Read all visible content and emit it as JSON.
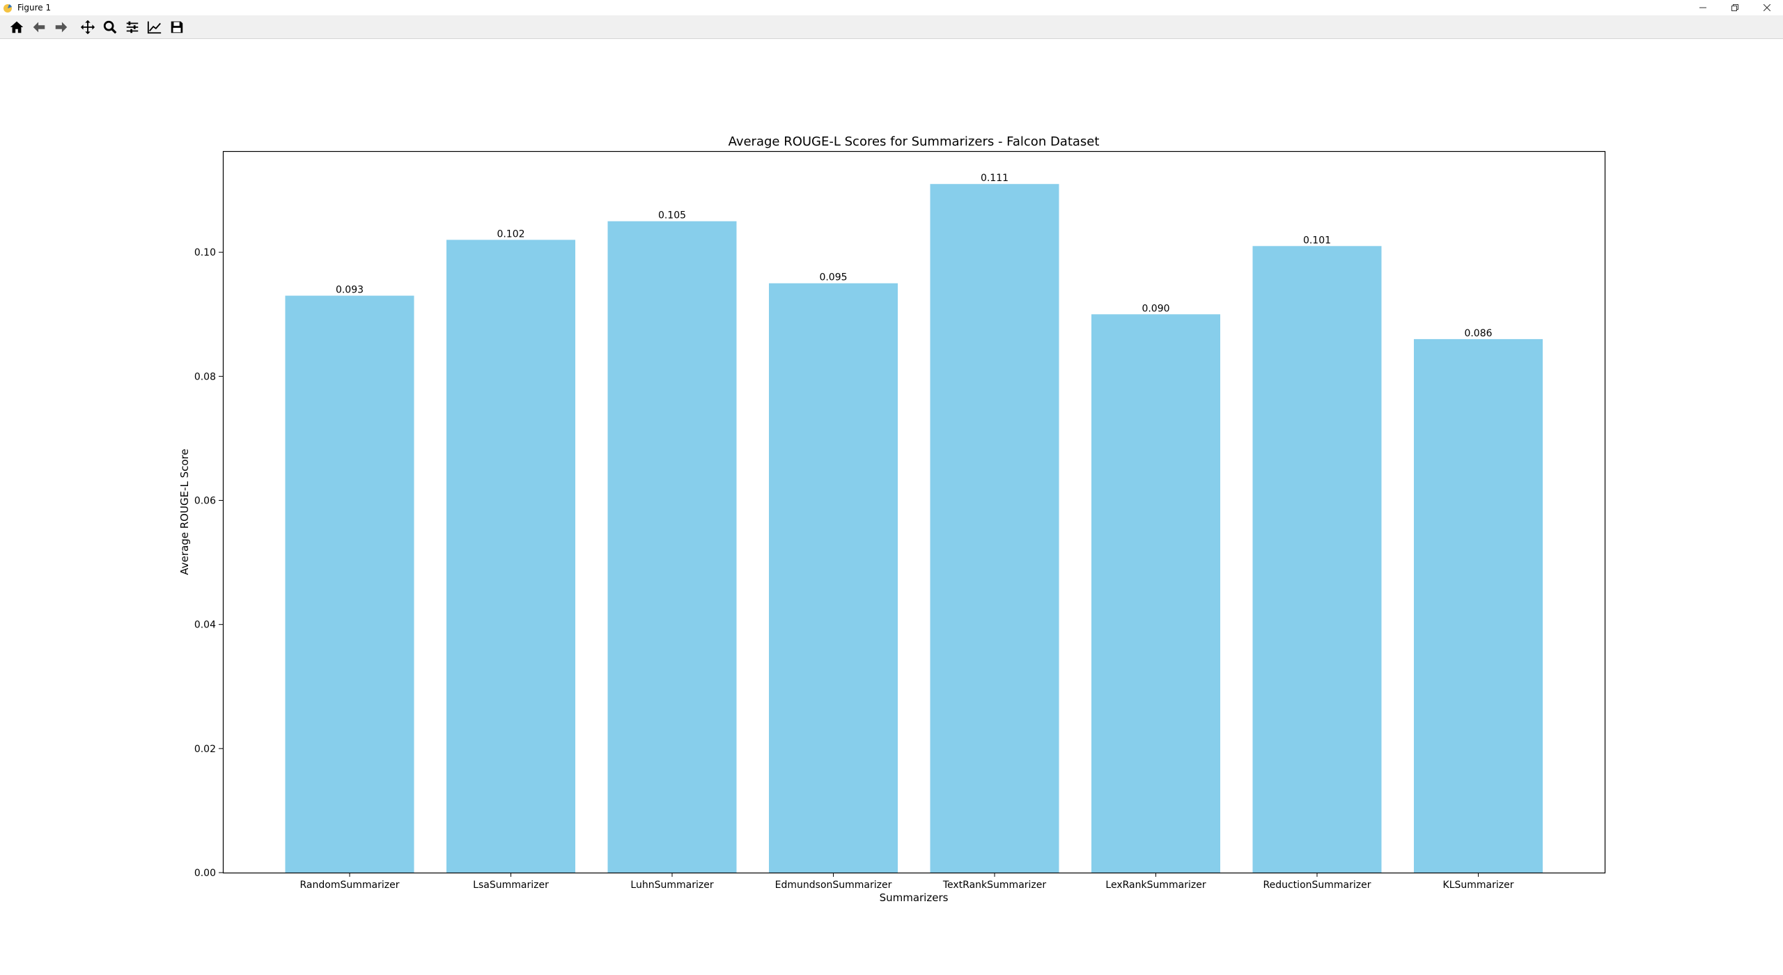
{
  "window": {
    "title": "Figure 1",
    "minimize_icon": "minimize-icon",
    "restore_icon": "restore-icon",
    "close_icon": "close-icon"
  },
  "toolbar": {
    "buttons": [
      {
        "name": "home-button",
        "icon": "home-icon"
      },
      {
        "name": "back-button",
        "icon": "back-arrow-icon"
      },
      {
        "name": "forward-button",
        "icon": "forward-arrow-icon"
      },
      {
        "name": "pan-button",
        "icon": "move-icon"
      },
      {
        "name": "zoom-button",
        "icon": "magnifier-icon"
      },
      {
        "name": "subplots-button",
        "icon": "sliders-icon"
      },
      {
        "name": "edit-axis-button",
        "icon": "line-chart-icon"
      },
      {
        "name": "save-button",
        "icon": "floppy-disk-icon"
      }
    ]
  },
  "chart_data": {
    "type": "bar",
    "title": "Average ROUGE-L Scores for Summarizers - Falcon Dataset",
    "xlabel": "Summarizers",
    "ylabel": "Average ROUGE-L Score",
    "categories": [
      "RandomSummarizer",
      "LsaSummarizer",
      "LuhnSummarizer",
      "EdmundsonSummarizer",
      "TextRankSummarizer",
      "LexRankSummarizer",
      "ReductionSummarizer",
      "KLSummarizer"
    ],
    "values": [
      0.093,
      0.102,
      0.105,
      0.095,
      0.111,
      0.09,
      0.101,
      0.086
    ],
    "value_labels": [
      "0.093",
      "0.102",
      "0.105",
      "0.095",
      "0.111",
      "0.090",
      "0.101",
      "0.086"
    ],
    "yticks": [
      0.0,
      0.02,
      0.04,
      0.06,
      0.08,
      0.1
    ],
    "ytick_labels": [
      "0.00",
      "0.02",
      "0.04",
      "0.06",
      "0.08",
      "0.10"
    ],
    "ylim": [
      0,
      0.1163
    ],
    "bar_color": "#87CEEB",
    "grid": false,
    "legend": "none"
  }
}
